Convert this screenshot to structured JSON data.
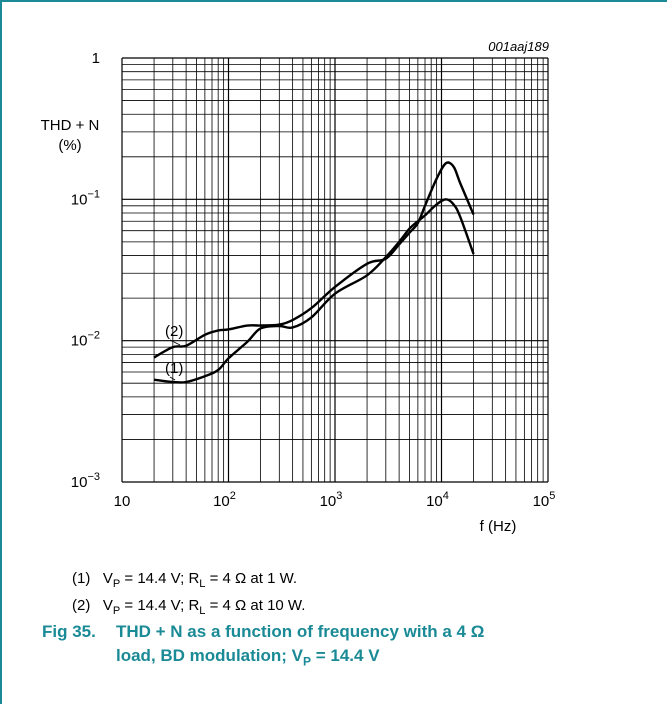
{
  "figure_code": "001aaj189",
  "chart_data": {
    "type": "line",
    "x_scale": "log",
    "y_scale": "log",
    "xlim": [
      10,
      100000
    ],
    "ylim": [
      0.001,
      1
    ],
    "x_ticks": [
      "10",
      "10^2",
      "10^3",
      "10^4",
      "10^5"
    ],
    "y_ticks": [
      "1",
      "10^-1",
      "10^-2",
      "10^-3"
    ],
    "xlabel": "f (Hz)",
    "ylabel": [
      "THD + N",
      "(%)"
    ],
    "grid": true,
    "series": [
      {
        "name": "(1)",
        "x": [
          20,
          30,
          40,
          60,
          80,
          100,
          150,
          200,
          300,
          400,
          600,
          1000,
          2000,
          3000,
          4000,
          5000,
          6000,
          7000,
          9000,
          11000,
          13000,
          15000,
          20000
        ],
        "y": [
          0.0053,
          0.0051,
          0.0051,
          0.0056,
          0.0062,
          0.0075,
          0.0098,
          0.0122,
          0.0127,
          0.0124,
          0.0146,
          0.0215,
          0.029,
          0.039,
          0.05,
          0.062,
          0.07,
          0.077,
          0.092,
          0.1,
          0.092,
          0.075,
          0.041
        ]
      },
      {
        "name": "(2)",
        "x": [
          20,
          30,
          40,
          60,
          80,
          100,
          150,
          200,
          300,
          400,
          600,
          1000,
          2000,
          3000,
          4000,
          5000,
          6000,
          7000,
          9000,
          11000,
          13000,
          15000,
          20000
        ],
        "y": [
          0.0076,
          0.009,
          0.0092,
          0.011,
          0.0118,
          0.012,
          0.0128,
          0.0128,
          0.013,
          0.014,
          0.017,
          0.024,
          0.035,
          0.038,
          0.048,
          0.058,
          0.068,
          0.09,
          0.14,
          0.18,
          0.17,
          0.13,
          0.078
        ]
      }
    ]
  },
  "notes": [
    {
      "id": "(1)",
      "pre": "V",
      "sub1": "P",
      "mid": " = 14.4 V; R",
      "sub2": "L",
      "post": " = 4 Ω at 1 W."
    },
    {
      "id": "(2)",
      "pre": "V",
      "sub1": "P",
      "mid": " = 14.4 V; R",
      "sub2": "L",
      "post": " = 4 Ω at 10 W."
    }
  ],
  "caption": {
    "number": "Fig 35.",
    "line1": "THD + N as a function of frequency with a 4 Ω",
    "line2": "load, BD modulation; V",
    "line2_sub": "P",
    "line2_post": " = 14.4 V"
  }
}
